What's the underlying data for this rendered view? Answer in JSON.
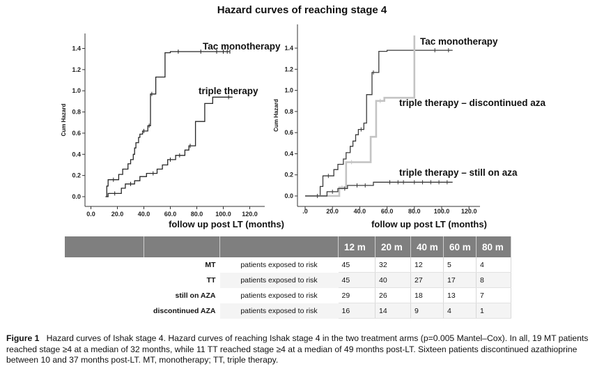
{
  "figure_title": "Hazard curves of reaching stage 4",
  "chart_data": [
    {
      "type": "line",
      "name": "left-panel",
      "title": "",
      "xlabel": "follow up post LT (months)",
      "ylabel": "Cum Hazard",
      "xticks": [
        0,
        20,
        40,
        60,
        80,
        100,
        120
      ],
      "xtick_labels": [
        "0.0",
        "20.0",
        "40.0",
        "60.0",
        "80.0",
        "100.0",
        "120.0"
      ],
      "yticks": [
        0,
        0.2,
        0.4,
        0.6,
        0.8,
        1.0,
        1.2,
        1.4
      ],
      "ytick_labels": [
        "0.0",
        "0.2",
        "0.4",
        "0.6",
        "0.8",
        "1.0",
        "1.2",
        "1.4"
      ],
      "xlim": [
        -8,
        124
      ],
      "ylim": [
        -0.07,
        1.5
      ],
      "series": [
        {
          "name": "Tac monotherapy",
          "color": "#262626",
          "x": [
            11,
            12,
            12,
            13,
            13,
            21,
            21,
            24,
            24,
            28,
            28,
            30,
            30,
            32,
            32,
            33,
            33,
            34,
            34,
            36,
            36,
            37,
            37,
            39,
            39,
            43,
            43,
            45,
            45,
            49,
            49,
            56,
            56,
            60,
            60,
            105
          ],
          "y": [
            0,
            0,
            0.1,
            0.1,
            0.16,
            0.16,
            0.21,
            0.21,
            0.26,
            0.26,
            0.31,
            0.31,
            0.35,
            0.35,
            0.4,
            0.4,
            0.46,
            0.46,
            0.51,
            0.51,
            0.56,
            0.56,
            0.59,
            0.59,
            0.62,
            0.62,
            0.67,
            0.67,
            0.97,
            0.97,
            1.13,
            1.13,
            1.36,
            1.36,
            1.37,
            1.37
          ],
          "censor_x": [
            17,
            40,
            44,
            46,
            66,
            83,
            95,
            100,
            103,
            105
          ]
        },
        {
          "name": "triple therapy",
          "color": "#262626",
          "x": [
            12,
            13,
            13,
            23,
            23,
            26,
            26,
            33,
            33,
            37,
            37,
            42,
            42,
            50,
            50,
            54,
            54,
            58,
            58,
            64,
            64,
            71,
            71,
            74,
            74,
            79,
            79,
            86,
            86,
            92,
            92,
            107
          ],
          "y": [
            0,
            0,
            0.03,
            0.03,
            0.08,
            0.08,
            0.12,
            0.12,
            0.15,
            0.15,
            0.19,
            0.19,
            0.22,
            0.22,
            0.26,
            0.26,
            0.3,
            0.3,
            0.35,
            0.35,
            0.39,
            0.39,
            0.44,
            0.44,
            0.48,
            0.48,
            0.71,
            0.71,
            0.88,
            0.88,
            0.94,
            0.94
          ],
          "censor_x": [
            18,
            30,
            47,
            60,
            67,
            75,
            104
          ]
        }
      ]
    },
    {
      "type": "line",
      "name": "right-panel",
      "title": "",
      "xlabel": "follow up post LT (months)",
      "ylabel": "Cum Hazard",
      "xticks": [
        0,
        20,
        40,
        60,
        80,
        100,
        120
      ],
      "xtick_labels": [
        ".0",
        "20.0",
        "40.0",
        "60.0",
        "80.0",
        "100.0",
        "120.0"
      ],
      "yticks": [
        0,
        0.2,
        0.4,
        0.6,
        0.8,
        1.0,
        1.2,
        1.4
      ],
      "ytick_labels": [
        "0.0",
        "0.2",
        "0.4",
        "0.6",
        "0.8",
        "1.0",
        "1.2",
        "1.4"
      ],
      "xlim": [
        -8,
        124
      ],
      "ylim": [
        -0.12,
        1.62
      ],
      "series": [
        {
          "name": "Tac monotherapy",
          "color": "#3a3a3a",
          "x": [
            0,
            11,
            11,
            13,
            13,
            21,
            21,
            24,
            24,
            28,
            28,
            30,
            30,
            33,
            33,
            35,
            35,
            37,
            37,
            39,
            39,
            43,
            43,
            45,
            45,
            49,
            49,
            54,
            54,
            60,
            60,
            108
          ],
          "y": [
            0,
            0,
            0.09,
            0.09,
            0.19,
            0.19,
            0.25,
            0.25,
            0.3,
            0.3,
            0.35,
            0.35,
            0.41,
            0.41,
            0.47,
            0.47,
            0.52,
            0.52,
            0.58,
            0.58,
            0.63,
            0.63,
            0.69,
            0.69,
            0.96,
            0.96,
            1.17,
            1.17,
            1.37,
            1.37,
            1.38,
            1.38
          ],
          "censor_x": [
            17,
            41,
            50,
            95,
            105
          ]
        },
        {
          "name": "triple therapy – discontinued aza",
          "color": "#c4c4c4",
          "x": [
            0,
            25,
            25,
            30,
            30,
            48,
            48,
            52,
            52,
            58,
            58,
            80,
            80
          ],
          "y": [
            0,
            0,
            0.08,
            0.08,
            0.32,
            0.32,
            0.56,
            0.56,
            0.9,
            0.9,
            0.93,
            0.93,
            1.52
          ],
          "censor_x": [
            27,
            34,
            55
          ]
        },
        {
          "name": "triple therapy – still on aza",
          "color": "#3a3a3a",
          "x": [
            0,
            16,
            16,
            24,
            24,
            31,
            31,
            50,
            50,
            108
          ],
          "y": [
            0,
            0,
            0.04,
            0.04,
            0.07,
            0.07,
            0.1,
            0.1,
            0.13,
            0.13
          ],
          "censor_x": [
            9,
            20,
            29,
            38,
            44,
            62,
            68,
            72,
            80,
            86,
            92,
            98,
            104
          ]
        }
      ]
    }
  ],
  "risk_table": {
    "headers": [
      "",
      "",
      "",
      "12 m",
      "20 m",
      "40 m",
      "60 m",
      "80 m"
    ],
    "rows": [
      {
        "group": "MT",
        "label": "patients exposed to risk",
        "values": [
          "45",
          "32",
          "12",
          "5",
          "4"
        ]
      },
      {
        "group": "TT",
        "label": "patients exposed to risk",
        "values": [
          "45",
          "40",
          "27",
          "17",
          "8"
        ]
      },
      {
        "group": "still on AZA",
        "label": "patients exposed to risk",
        "values": [
          "29",
          "26",
          "18",
          "13",
          "7"
        ]
      },
      {
        "group": "discontinued AZA",
        "label": "patients exposed to risk",
        "values": [
          "16",
          "14",
          "9",
          "4",
          "1"
        ]
      }
    ]
  },
  "caption": {
    "label": "Figure 1",
    "text": "Hazard curves of Ishak stage 4. Hazard curves of reaching Ishak stage 4 in the two treatment arms (p=0.005 Mantel–Cox). In all, 19 MT patients reached stage ≥4 at a median of 32 months, while 11 TT reached stage ≥4 at a median of 49 months post-LT. Sixteen patients discontinued azathioprine between 10 and 37 months post-LT. MT, monotherapy; TT, triple therapy."
  }
}
